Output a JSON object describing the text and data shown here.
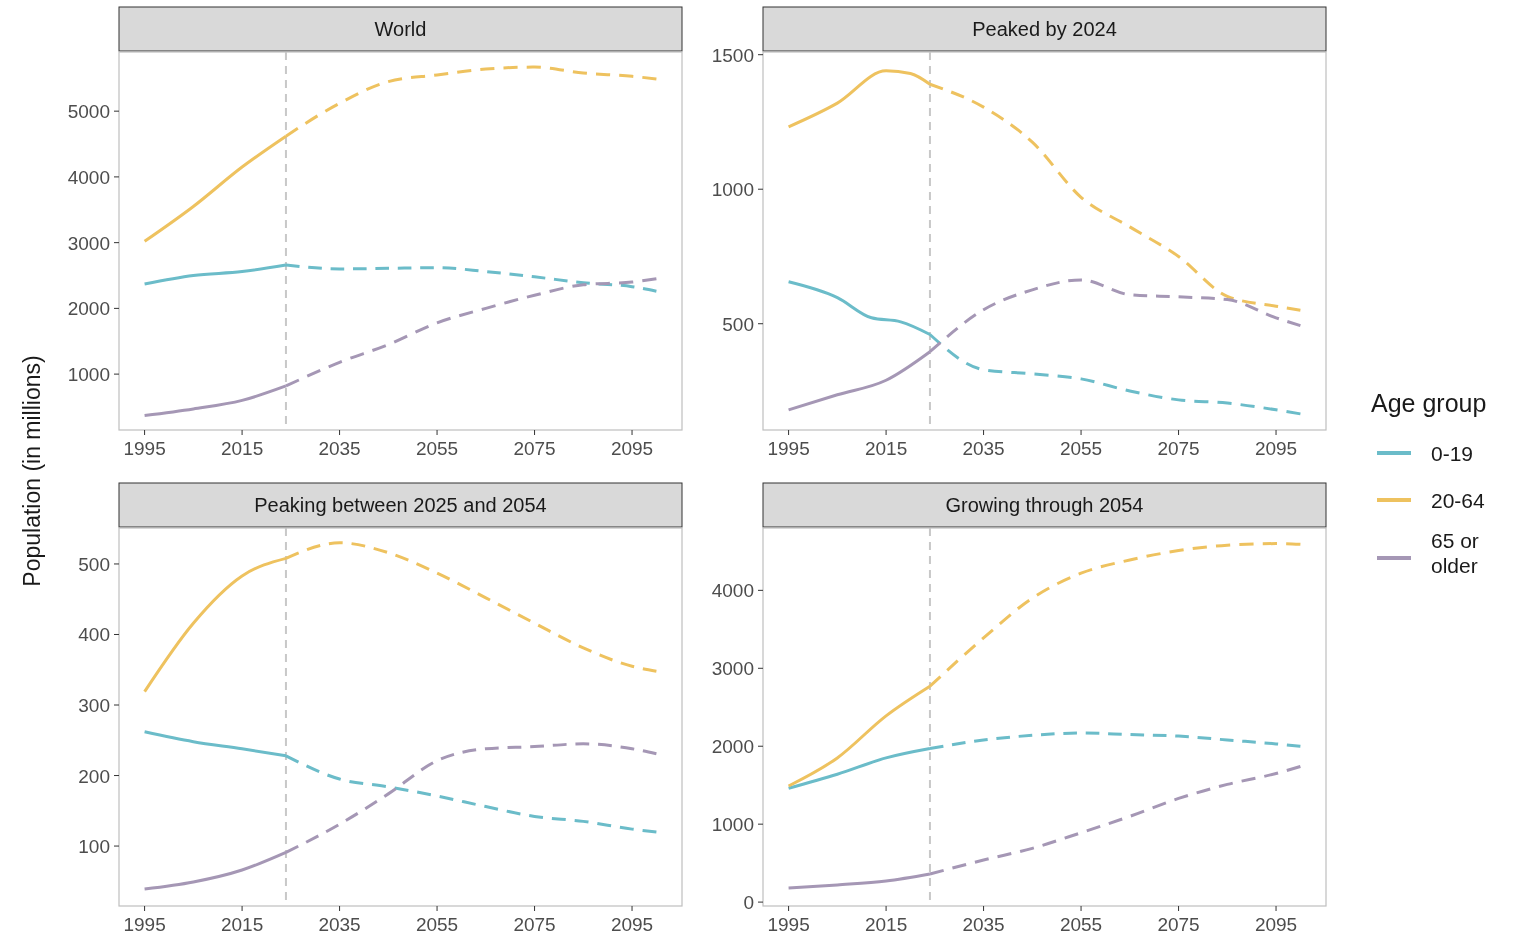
{
  "chart_data": [
    {
      "type": "line",
      "title": "World",
      "ylabel": "Population (in millions)",
      "xlim": [
        1989.75,
        2105.25
      ],
      "xticks": [
        1995,
        2015,
        2035,
        2055,
        2075,
        2095
      ],
      "ylim": [
        150,
        5900
      ],
      "yticks": [
        1000,
        2000,
        3000,
        4000,
        5000
      ],
      "grid": false,
      "ref_lines": [
        {
          "axis": "x",
          "value": 2024,
          "color": "#c8c8c8",
          "line_style": "dashed"
        }
      ],
      "series": [
        {
          "color": "#6bbcc9",
          "line_style": "solid",
          "x": [
            1995,
            2005,
            2015,
            2024
          ],
          "values": [
            2370,
            2500,
            2560,
            2660
          ]
        },
        {
          "color": "#6bbcc9",
          "line_style": "dashed",
          "x": [
            2024,
            2035,
            2045,
            2055,
            2065,
            2075,
            2085,
            2095,
            2100
          ],
          "values": [
            2660,
            2600,
            2610,
            2620,
            2560,
            2480,
            2390,
            2330,
            2260
          ]
        },
        {
          "color": "#eec25f",
          "line_style": "solid",
          "x": [
            1995,
            2005,
            2015,
            2024
          ],
          "values": [
            3020,
            3550,
            4150,
            4620
          ]
        },
        {
          "color": "#eec25f",
          "line_style": "dashed",
          "x": [
            2024,
            2035,
            2045,
            2055,
            2065,
            2075,
            2085,
            2095,
            2100
          ],
          "values": [
            4620,
            5120,
            5450,
            5550,
            5640,
            5670,
            5580,
            5530,
            5490
          ]
        },
        {
          "color": "#a597b5",
          "line_style": "solid",
          "x": [
            1995,
            2005,
            2015,
            2024
          ],
          "values": [
            370,
            470,
            600,
            820
          ]
        },
        {
          "color": "#a597b5",
          "line_style": "dashed",
          "x": [
            2024,
            2035,
            2045,
            2055,
            2065,
            2075,
            2085,
            2095,
            2100
          ],
          "values": [
            820,
            1180,
            1450,
            1780,
            2000,
            2200,
            2360,
            2400,
            2450
          ]
        }
      ]
    },
    {
      "type": "line",
      "title": "Peaked by 2024",
      "legend": "right",
      "legend_title": "Age group",
      "xlim": [
        1989.75,
        2105.25
      ],
      "xticks": [
        1995,
        2015,
        2035,
        2055,
        2075,
        2095
      ],
      "ylim": [
        105,
        1510
      ],
      "yticks": [
        500,
        1000,
        1500
      ],
      "grid": false,
      "ref_lines": [
        {
          "axis": "x",
          "value": 2024,
          "color": "#c8c8c8",
          "line_style": "dashed"
        }
      ],
      "series": [
        {
          "name": "0-19",
          "color": "#6bbcc9",
          "line_style": "solid",
          "x": [
            1995,
            2005,
            2012,
            2018,
            2024
          ],
          "values": [
            656,
            597,
            522,
            507,
            460
          ]
        },
        {
          "color": "#6bbcc9",
          "line_style": "dashed",
          "x": [
            2024,
            2035,
            2045,
            2055,
            2065,
            2075,
            2085,
            2095,
            2100
          ],
          "values": [
            460,
            329,
            314,
            295,
            250,
            217,
            205,
            180,
            165
          ]
        },
        {
          "name": "20-64",
          "color": "#eec25f",
          "line_style": "solid",
          "x": [
            1995,
            2005,
            2015,
            2020,
            2024
          ],
          "values": [
            1232,
            1320,
            1440,
            1430,
            1390
          ]
        },
        {
          "color": "#eec25f",
          "line_style": "dashed",
          "x": [
            2024,
            2035,
            2045,
            2055,
            2065,
            2075,
            2085,
            2095,
            2100
          ],
          "values": [
            1390,
            1305,
            1175,
            970,
            860,
            750,
            602,
            565,
            550
          ]
        },
        {
          "name": "65 or older",
          "color": "#a597b5",
          "line_style": "solid",
          "x": [
            1995,
            2005,
            2015,
            2024
          ],
          "values": [
            180,
            236,
            290,
            396
          ]
        },
        {
          "color": "#a597b5",
          "line_style": "dashed",
          "x": [
            2024,
            2035,
            2045,
            2055,
            2065,
            2075,
            2085,
            2095,
            2100
          ],
          "values": [
            396,
            552,
            626,
            663,
            608,
            600,
            590,
            522,
            493
          ]
        }
      ]
    },
    {
      "type": "line",
      "title": "Peaking between 2025 and 2054",
      "xlim": [
        1989.75,
        2105.25
      ],
      "xticks": [
        1995,
        2015,
        2035,
        2055,
        2075,
        2095
      ],
      "ylim": [
        15,
        551
      ],
      "yticks": [
        100,
        200,
        300,
        400,
        500
      ],
      "grid": false,
      "ref_lines": [
        {
          "axis": "x",
          "value": 2024,
          "color": "#c8c8c8",
          "line_style": "dashed"
        }
      ],
      "series": [
        {
          "color": "#6bbcc9",
          "line_style": "solid",
          "x": [
            1995,
            2005,
            2015,
            2024
          ],
          "values": [
            262,
            248,
            238,
            228
          ]
        },
        {
          "color": "#6bbcc9",
          "line_style": "dashed",
          "x": [
            2024,
            2035,
            2045,
            2055,
            2065,
            2075,
            2085,
            2095,
            2100
          ],
          "values": [
            228,
            195,
            184,
            171,
            156,
            142,
            135,
            124,
            120
          ]
        },
        {
          "color": "#eec25f",
          "line_style": "solid",
          "x": [
            1995,
            2005,
            2015,
            2024
          ],
          "values": [
            319,
            416,
            483,
            508
          ]
        },
        {
          "color": "#eec25f",
          "line_style": "dashed",
          "x": [
            2024,
            2035,
            2045,
            2055,
            2065,
            2075,
            2085,
            2095,
            2100
          ],
          "values": [
            508,
            530,
            516,
            487,
            452,
            416,
            381,
            355,
            348
          ]
        },
        {
          "color": "#a597b5",
          "line_style": "solid",
          "x": [
            1995,
            2005,
            2015,
            2024
          ],
          "values": [
            39,
            49,
            66,
            91
          ]
        },
        {
          "color": "#a597b5",
          "line_style": "dashed",
          "x": [
            2024,
            2035,
            2045,
            2055,
            2065,
            2075,
            2085,
            2095,
            2100
          ],
          "values": [
            91,
            131,
            174,
            221,
            238,
            241,
            245,
            238,
            231
          ]
        }
      ]
    },
    {
      "type": "line",
      "title": "Growing through 2054",
      "xlim": [
        1989.75,
        2105.25
      ],
      "xticks": [
        1995,
        2015,
        2035,
        2055,
        2075,
        2095
      ],
      "ylim": [
        -50,
        4800
      ],
      "yticks": [
        0,
        1000,
        2000,
        3000,
        4000
      ],
      "grid": false,
      "ref_lines": [
        {
          "axis": "x",
          "value": 2024,
          "color": "#c8c8c8",
          "line_style": "dashed"
        }
      ],
      "series": [
        {
          "color": "#6bbcc9",
          "line_style": "solid",
          "x": [
            1995,
            2005,
            2015,
            2024
          ],
          "values": [
            1460,
            1640,
            1850,
            1970
          ]
        },
        {
          "color": "#6bbcc9",
          "line_style": "dashed",
          "x": [
            2024,
            2035,
            2045,
            2055,
            2065,
            2075,
            2085,
            2095,
            2100
          ],
          "values": [
            1970,
            2080,
            2140,
            2170,
            2150,
            2130,
            2080,
            2030,
            2000
          ]
        },
        {
          "color": "#eec25f",
          "line_style": "solid",
          "x": [
            1995,
            2005,
            2015,
            2024
          ],
          "values": [
            1490,
            1850,
            2390,
            2770
          ]
        },
        {
          "color": "#eec25f",
          "line_style": "dashed",
          "x": [
            2024,
            2035,
            2045,
            2055,
            2065,
            2075,
            2085,
            2095,
            2100
          ],
          "values": [
            2770,
            3390,
            3900,
            4220,
            4390,
            4510,
            4580,
            4600,
            4590
          ]
        },
        {
          "color": "#a597b5",
          "line_style": "solid",
          "x": [
            1995,
            2005,
            2015,
            2024
          ],
          "values": [
            180,
            220,
            270,
            360
          ]
        },
        {
          "color": "#a597b5",
          "line_style": "dashed",
          "x": [
            2024,
            2035,
            2045,
            2055,
            2065,
            2075,
            2085,
            2095,
            2100
          ],
          "values": [
            360,
            540,
            690,
            890,
            1100,
            1330,
            1510,
            1650,
            1740
          ]
        }
      ]
    }
  ]
}
